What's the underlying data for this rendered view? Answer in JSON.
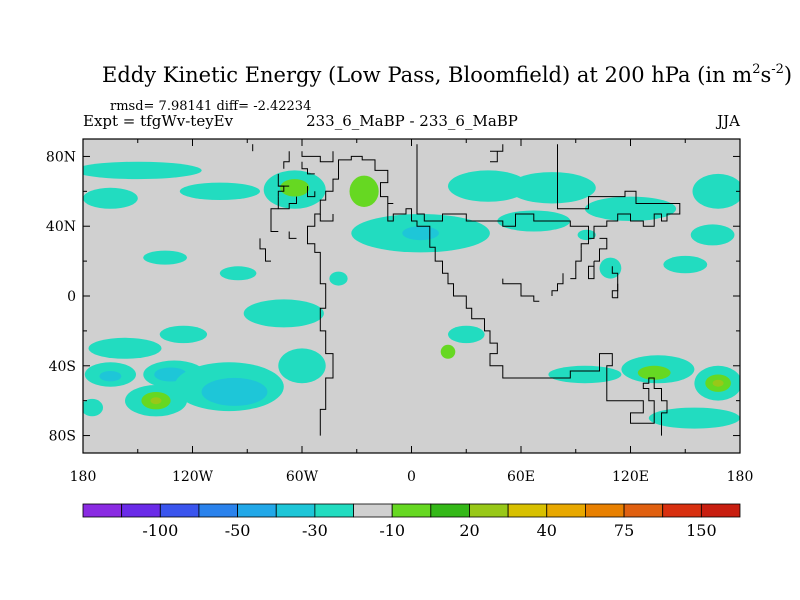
{
  "chart_data": {
    "type": "heatmap",
    "title": "Eddy Kinetic Energy (Low Pass, Bloomfield) at 200 hPa (in m",
    "title_units_sup1": "2",
    "title_units_mid": "s",
    "title_units_sup2": "-2",
    "title_units_close": ")",
    "stats_line": "rmsd= 7.98141 diff= -2.42234",
    "expt_label": "Expt = tfgWv-teyEv",
    "center_label": "233_6_MaBP - 233_6_MaBP",
    "season_label": "JJA",
    "x_ticks": [
      "180",
      "120W",
      "60W",
      "0",
      "60E",
      "120E",
      "180"
    ],
    "x_tick_values": [
      -180,
      -120,
      -60,
      0,
      60,
      120,
      180
    ],
    "y_ticks": [
      "80N",
      "40N",
      "0",
      "40S",
      "80S"
    ],
    "y_tick_values": [
      80,
      40,
      0,
      -40,
      -80
    ],
    "xlim": [
      -180,
      180
    ],
    "ylim": [
      -90,
      90
    ],
    "background_color": "#d0d0d0",
    "colorbar": {
      "colors": [
        "#8a2be2",
        "#6a2be8",
        "#3a55ee",
        "#2a82ec",
        "#22a8e8",
        "#1ec6d8",
        "#22dcc0",
        "#d0d0d0",
        "#66d822",
        "#34b818",
        "#98c818",
        "#d8c000",
        "#e8a800",
        "#e88000",
        "#e06010",
        "#d83010",
        "#c81e10"
      ],
      "labels": [
        "-100",
        "-50",
        "-30",
        "-10",
        "20",
        "40",
        "75",
        "150"
      ],
      "label_boundaries": [
        2,
        4,
        6,
        8,
        10,
        12,
        14,
        16
      ]
    },
    "anomaly_regions": [
      {
        "lon": -150,
        "lat": 72,
        "rx": 35,
        "ry": 5,
        "color": "#22dcc0"
      },
      {
        "lon": -165,
        "lat": 56,
        "rx": 15,
        "ry": 6,
        "color": "#22dcc0"
      },
      {
        "lon": -105,
        "lat": 60,
        "rx": 22,
        "ry": 5,
        "color": "#22dcc0"
      },
      {
        "lon": -64,
        "lat": 61,
        "rx": 17,
        "ry": 11,
        "color": "#22dcc0"
      },
      {
        "lon": -64,
        "lat": 62,
        "rx": 8,
        "ry": 5,
        "color": "#66d822"
      },
      {
        "lon": -26,
        "lat": 60,
        "rx": 8,
        "ry": 9,
        "color": "#66d822"
      },
      {
        "lon": 5,
        "lat": 36,
        "rx": 38,
        "ry": 11,
        "color": "#22dcc0"
      },
      {
        "lon": 5,
        "lat": 36,
        "rx": 10,
        "ry": 4,
        "color": "#1ec6d8"
      },
      {
        "lon": 42,
        "lat": 63,
        "rx": 22,
        "ry": 9,
        "color": "#22dcc0"
      },
      {
        "lon": 77,
        "lat": 62,
        "rx": 24,
        "ry": 9,
        "color": "#22dcc0"
      },
      {
        "lon": 67,
        "lat": 43,
        "rx": 20,
        "ry": 6,
        "color": "#22dcc0"
      },
      {
        "lon": 120,
        "lat": 50,
        "rx": 25,
        "ry": 7,
        "color": "#22dcc0"
      },
      {
        "lon": 168,
        "lat": 60,
        "rx": 14,
        "ry": 10,
        "color": "#22dcc0"
      },
      {
        "lon": 165,
        "lat": 35,
        "rx": 12,
        "ry": 6,
        "color": "#22dcc0"
      },
      {
        "lon": 150,
        "lat": 18,
        "rx": 12,
        "ry": 5,
        "color": "#22dcc0"
      },
      {
        "lon": 109,
        "lat": 16,
        "rx": 6,
        "ry": 6,
        "color": "#22dcc0"
      },
      {
        "lon": -135,
        "lat": 22,
        "rx": 12,
        "ry": 4,
        "color": "#22dcc0"
      },
      {
        "lon": -95,
        "lat": 13,
        "rx": 10,
        "ry": 4,
        "color": "#22dcc0"
      },
      {
        "lon": -70,
        "lat": -10,
        "rx": 22,
        "ry": 8,
        "color": "#22dcc0"
      },
      {
        "lon": -125,
        "lat": -22,
        "rx": 13,
        "ry": 5,
        "color": "#22dcc0"
      },
      {
        "lon": -157,
        "lat": -30,
        "rx": 20,
        "ry": 6,
        "color": "#22dcc0"
      },
      {
        "lon": -130,
        "lat": -45,
        "rx": 17,
        "ry": 8,
        "color": "#22dcc0"
      },
      {
        "lon": -132,
        "lat": -45,
        "rx": 9,
        "ry": 4,
        "color": "#1ec6d8"
      },
      {
        "lon": -165,
        "lat": -45,
        "rx": 14,
        "ry": 7,
        "color": "#22dcc0"
      },
      {
        "lon": -165,
        "lat": -46,
        "rx": 6,
        "ry": 3,
        "color": "#1ec6d8"
      },
      {
        "lon": -100,
        "lat": -52,
        "rx": 30,
        "ry": 14,
        "color": "#22dcc0"
      },
      {
        "lon": -97,
        "lat": -55,
        "rx": 18,
        "ry": 8,
        "color": "#1ec6d8"
      },
      {
        "lon": -140,
        "lat": -60,
        "rx": 17,
        "ry": 9,
        "color": "#22dcc0"
      },
      {
        "lon": -140,
        "lat": -60,
        "rx": 8,
        "ry": 5,
        "color": "#66d822"
      },
      {
        "lon": -140,
        "lat": -60,
        "rx": 3,
        "ry": 2,
        "color": "#98c818"
      },
      {
        "lon": -60,
        "lat": -40,
        "rx": 13,
        "ry": 10,
        "color": "#22dcc0"
      },
      {
        "lon": -175,
        "lat": -64,
        "rx": 6,
        "ry": 5,
        "color": "#22dcc0"
      },
      {
        "lon": 30,
        "lat": -22,
        "rx": 10,
        "ry": 5,
        "color": "#22dcc0"
      },
      {
        "lon": 20,
        "lat": -32,
        "rx": 4,
        "ry": 4,
        "color": "#66d822"
      },
      {
        "lon": 95,
        "lat": -45,
        "rx": 20,
        "ry": 5,
        "color": "#22dcc0"
      },
      {
        "lon": 135,
        "lat": -42,
        "rx": 20,
        "ry": 8,
        "color": "#22dcc0"
      },
      {
        "lon": 133,
        "lat": -44,
        "rx": 9,
        "ry": 4,
        "color": "#66d822"
      },
      {
        "lon": 168,
        "lat": -50,
        "rx": 13,
        "ry": 10,
        "color": "#22dcc0"
      },
      {
        "lon": 168,
        "lat": -50,
        "rx": 7,
        "ry": 5,
        "color": "#66d822"
      },
      {
        "lon": 168,
        "lat": -50,
        "rx": 3,
        "ry": 2,
        "color": "#98c818"
      },
      {
        "lon": 155,
        "lat": -70,
        "rx": 25,
        "ry": 6,
        "color": "#22dcc0"
      },
      {
        "lon": -40,
        "lat": 10,
        "rx": 5,
        "ry": 4,
        "color": "#22dcc0"
      },
      {
        "lon": 96,
        "lat": 35,
        "rx": 5,
        "ry": 3,
        "color": "#22dcc0"
      }
    ],
    "coastlines": [
      [
        [
          -50,
          -80
        ],
        [
          -50,
          -65
        ],
        [
          -47,
          -65
        ],
        [
          -47,
          -47
        ],
        [
          -43,
          -47
        ],
        [
          -43,
          -33
        ],
        [
          -47,
          -33
        ],
        [
          -47,
          -20
        ],
        [
          -50,
          -20
        ],
        [
          -50,
          -7
        ],
        [
          -47,
          -7
        ],
        [
          -47,
          7
        ],
        [
          -50,
          7
        ],
        [
          -50,
          25
        ],
        [
          -53,
          25
        ],
        [
          -53,
          30
        ],
        [
          -57,
          30
        ],
        [
          -57,
          40
        ],
        [
          -53,
          40
        ],
        [
          -53,
          47
        ],
        [
          -50,
          47
        ],
        [
          -50,
          55
        ],
        [
          -47,
          55
        ],
        [
          -47,
          60
        ],
        [
          -43,
          60
        ],
        [
          -43,
          67
        ],
        [
          -40,
          67
        ],
        [
          -40,
          78
        ],
        [
          -33,
          78
        ],
        [
          -33,
          80
        ],
        [
          -27,
          80
        ],
        [
          -27,
          78
        ],
        [
          -20,
          78
        ],
        [
          -20,
          72
        ],
        [
          -13,
          72
        ],
        [
          -13,
          65
        ],
        [
          -17,
          65
        ],
        [
          -17,
          57
        ],
        [
          -13,
          57
        ],
        [
          -13,
          43
        ],
        [
          -10,
          43
        ],
        [
          -10,
          47
        ],
        [
          -3,
          47
        ],
        [
          -3,
          50
        ],
        [
          0,
          50
        ],
        [
          0,
          43
        ],
        [
          3,
          43
        ],
        [
          3,
          40
        ],
        [
          10,
          40
        ],
        [
          10,
          28
        ],
        [
          13,
          28
        ],
        [
          13,
          20
        ],
        [
          17,
          20
        ],
        [
          17,
          13
        ],
        [
          20,
          13
        ],
        [
          20,
          7
        ],
        [
          23,
          7
        ],
        [
          23,
          0
        ],
        [
          30,
          0
        ],
        [
          30,
          -7
        ],
        [
          33,
          -7
        ],
        [
          33,
          -13
        ],
        [
          40,
          -13
        ],
        [
          40,
          -20
        ],
        [
          43,
          -20
        ],
        [
          43,
          -27
        ],
        [
          47,
          -27
        ],
        [
          47,
          -33
        ],
        [
          43,
          -33
        ],
        [
          43,
          -40
        ],
        [
          50,
          -40
        ],
        [
          50,
          -47
        ],
        [
          87,
          -47
        ],
        [
          87,
          -43
        ],
        [
          103,
          -43
        ],
        [
          103,
          -33
        ],
        [
          110,
          -33
        ],
        [
          110,
          -40
        ],
        [
          107,
          -40
        ],
        [
          107,
          -60
        ],
        [
          127,
          -60
        ],
        [
          127,
          -67
        ],
        [
          120,
          -67
        ],
        [
          120,
          -73
        ],
        [
          133,
          -73
        ],
        [
          133,
          -60
        ],
        [
          130,
          -60
        ],
        [
          130,
          -53
        ],
        [
          127,
          -53
        ],
        [
          127,
          -50
        ],
        [
          130,
          -50
        ],
        [
          130,
          -47
        ],
        [
          133,
          -47
        ],
        [
          133,
          -53
        ],
        [
          137,
          -53
        ],
        [
          137,
          -60
        ],
        [
          140,
          -60
        ],
        [
          140,
          -67
        ],
        [
          137,
          -67
        ],
        [
          137,
          -80
        ]
      ],
      [
        [
          3,
          87
        ],
        [
          3,
          47
        ],
        [
          7,
          47
        ],
        [
          7,
          43
        ],
        [
          17,
          43
        ],
        [
          17,
          47
        ],
        [
          30,
          47
        ],
        [
          30,
          43
        ],
        [
          50,
          43
        ],
        [
          50,
          40
        ],
        [
          57,
          40
        ],
        [
          57,
          47
        ],
        [
          67,
          47
        ],
        [
          67,
          43
        ],
        [
          87,
          43
        ],
        [
          87,
          40
        ],
        [
          97,
          40
        ],
        [
          97,
          33
        ],
        [
          100,
          33
        ],
        [
          100,
          40
        ],
        [
          107,
          40
        ],
        [
          107,
          43
        ],
        [
          113,
          43
        ],
        [
          113,
          47
        ],
        [
          120,
          47
        ],
        [
          120,
          43
        ],
        [
          127,
          43
        ],
        [
          127,
          40
        ],
        [
          133,
          40
        ],
        [
          133,
          47
        ],
        [
          137,
          47
        ],
        [
          137,
          43
        ],
        [
          140,
          43
        ],
        [
          140,
          47
        ],
        [
          147,
          47
        ],
        [
          147,
          53
        ],
        [
          123,
          53
        ],
        [
          123,
          60
        ],
        [
          117,
          60
        ],
        [
          117,
          57
        ],
        [
          97,
          57
        ],
        [
          97,
          50
        ],
        [
          80,
          50
        ],
        [
          80,
          87
        ]
      ],
      [
        [
          -43,
          83
        ],
        [
          -43,
          77
        ],
        [
          -50,
          77
        ],
        [
          -50,
          80
        ],
        [
          -60,
          80
        ],
        [
          -60,
          83
        ]
      ],
      [
        [
          -67,
          83
        ],
        [
          -67,
          77
        ],
        [
          -70,
          77
        ],
        [
          -70,
          73
        ]
      ],
      [
        [
          -73,
          57
        ],
        [
          -73,
          50
        ],
        [
          -67,
          50
        ],
        [
          -67,
          53
        ],
        [
          -63,
          53
        ],
        [
          -63,
          57
        ]
      ],
      [
        [
          -57,
          63
        ],
        [
          -57,
          57
        ],
        [
          -53,
          57
        ],
        [
          -53,
          60
        ]
      ],
      [
        [
          -77,
          43
        ],
        [
          -77,
          37
        ],
        [
          -73,
          37
        ]
      ],
      [
        [
          -73,
          50
        ],
        [
          -77,
          50
        ],
        [
          -77,
          43
        ]
      ],
      [
        [
          -60,
          77
        ],
        [
          -60,
          73
        ],
        [
          -57,
          73
        ],
        [
          -57,
          70
        ],
        [
          -53,
          70
        ]
      ],
      [
        [
          -73,
          70
        ],
        [
          -73,
          63
        ],
        [
          -70,
          63
        ],
        [
          -70,
          60
        ],
        [
          -73,
          60
        ],
        [
          -73,
          57
        ]
      ],
      [
        [
          -50,
          47
        ],
        [
          -50,
          43
        ],
        [
          -43,
          43
        ],
        [
          -43,
          47
        ]
      ],
      [
        [
          -67,
          37
        ],
        [
          -67,
          33
        ],
        [
          -63,
          33
        ]
      ],
      [
        [
          -73,
          63
        ],
        [
          -67,
          63
        ]
      ],
      [
        [
          -83,
          33
        ],
        [
          -83,
          27
        ],
        [
          -80,
          27
        ],
        [
          -80,
          20
        ],
        [
          -77,
          20
        ]
      ],
      [
        [
          -10,
          53
        ],
        [
          -13,
          53
        ]
      ],
      [
        [
          43,
          83
        ],
        [
          50,
          83
        ],
        [
          50,
          87
        ]
      ],
      [
        [
          47,
          83
        ],
        [
          47,
          77
        ],
        [
          43,
          77
        ]
      ],
      [
        [
          -87,
          87
        ],
        [
          -87,
          83
        ]
      ],
      [
        [
          110,
          -1
        ],
        [
          110,
          3
        ],
        [
          113,
          3
        ],
        [
          113,
          7
        ]
      ],
      [
        [
          50,
          10
        ],
        [
          50,
          7
        ],
        [
          60,
          7
        ],
        [
          60,
          0
        ],
        [
          67,
          0
        ],
        [
          67,
          -3
        ],
        [
          70,
          -3
        ]
      ],
      [
        [
          77,
          0
        ],
        [
          77,
          3
        ],
        [
          80,
          3
        ],
        [
          80,
          7
        ],
        [
          83,
          7
        ],
        [
          83,
          13
        ]
      ],
      [
        [
          93,
          27
        ],
        [
          93,
          20
        ],
        [
          90,
          20
        ],
        [
          90,
          10
        ],
        [
          87,
          10
        ]
      ],
      [
        [
          97,
          33
        ],
        [
          97,
          30
        ],
        [
          93,
          30
        ],
        [
          93,
          27
        ]
      ],
      [
        [
          100,
          20
        ],
        [
          100,
          10
        ],
        [
          97,
          10
        ],
        [
          97,
          17
        ],
        [
          100,
          17
        ]
      ],
      [
        [
          100,
          20
        ],
        [
          103,
          20
        ],
        [
          103,
          27
        ],
        [
          107,
          27
        ],
        [
          107,
          33
        ],
        [
          103,
          33
        ]
      ],
      [
        [
          110,
          17
        ],
        [
          110,
          13
        ],
        [
          113,
          13
        ],
        [
          113,
          -1
        ],
        [
          110,
          -1
        ]
      ]
    ]
  }
}
